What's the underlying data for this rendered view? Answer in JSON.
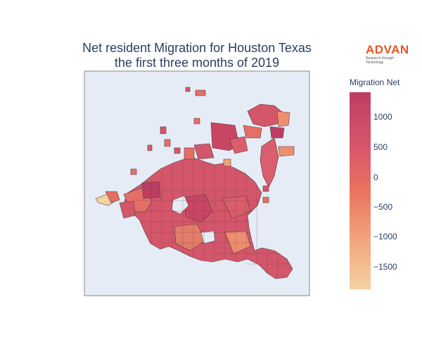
{
  "title_line1": "Net resident Migration for Houston Texas",
  "title_line2": "the first three months of 2019",
  "logo": {
    "text": "ADVAN",
    "tagline": "Research through Technology"
  },
  "colorbar": {
    "title": "Migration Net",
    "ticks": [
      "1000",
      "500",
      "0",
      "−500",
      "−1000",
      "−1500"
    ]
  },
  "colors": {
    "map_background": "#e5ecf6",
    "region_border": "#5a3a3a",
    "scale_high": "#bd3e63",
    "scale_mid": "#e9735f",
    "scale_low": "#f5d2a2"
  }
}
